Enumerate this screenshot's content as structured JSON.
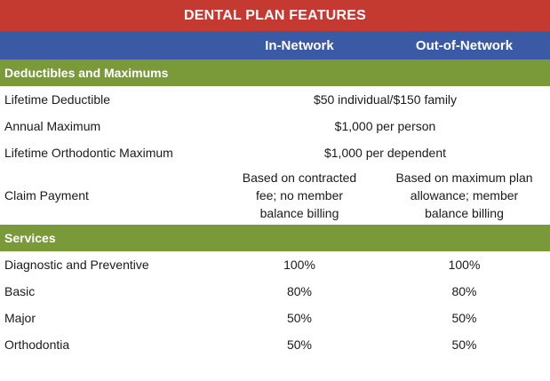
{
  "title": "DENTAL PLAN FEATURES",
  "columns": {
    "in_network": "In-Network",
    "out_of_network": "Out-of-Network"
  },
  "sections": {
    "deductibles": {
      "heading": "Deductibles and Maximums",
      "rows": {
        "lifetime_deductible": {
          "label": "Lifetime Deductible",
          "value": "$50 individual/$150 family"
        },
        "annual_maximum": {
          "label": "Annual Maximum",
          "value": "$1,000 per person"
        },
        "ortho_maximum": {
          "label": "Lifetime Orthodontic Maximum",
          "value": "$1,000 per dependent"
        },
        "claim_payment": {
          "label": "Claim Payment",
          "in_network": "Based on contracted fee; no member balance billing",
          "out_of_network": "Based on maximum plan allowance; member balance billing"
        }
      }
    },
    "services": {
      "heading": "Services",
      "rows": [
        {
          "label": "Diagnostic and Preventive",
          "in_network": "100%",
          "out_of_network": "100%"
        },
        {
          "label": "Basic",
          "in_network": "80%",
          "out_of_network": "80%"
        },
        {
          "label": "Major",
          "in_network": "50%",
          "out_of_network": "50%"
        },
        {
          "label": "Orthodontia",
          "in_network": "50%",
          "out_of_network": "50%"
        }
      ]
    }
  },
  "colors": {
    "title_bg": "#c43a30",
    "header_bg": "#3b5aa6",
    "section_bg": "#7a9a3a"
  }
}
